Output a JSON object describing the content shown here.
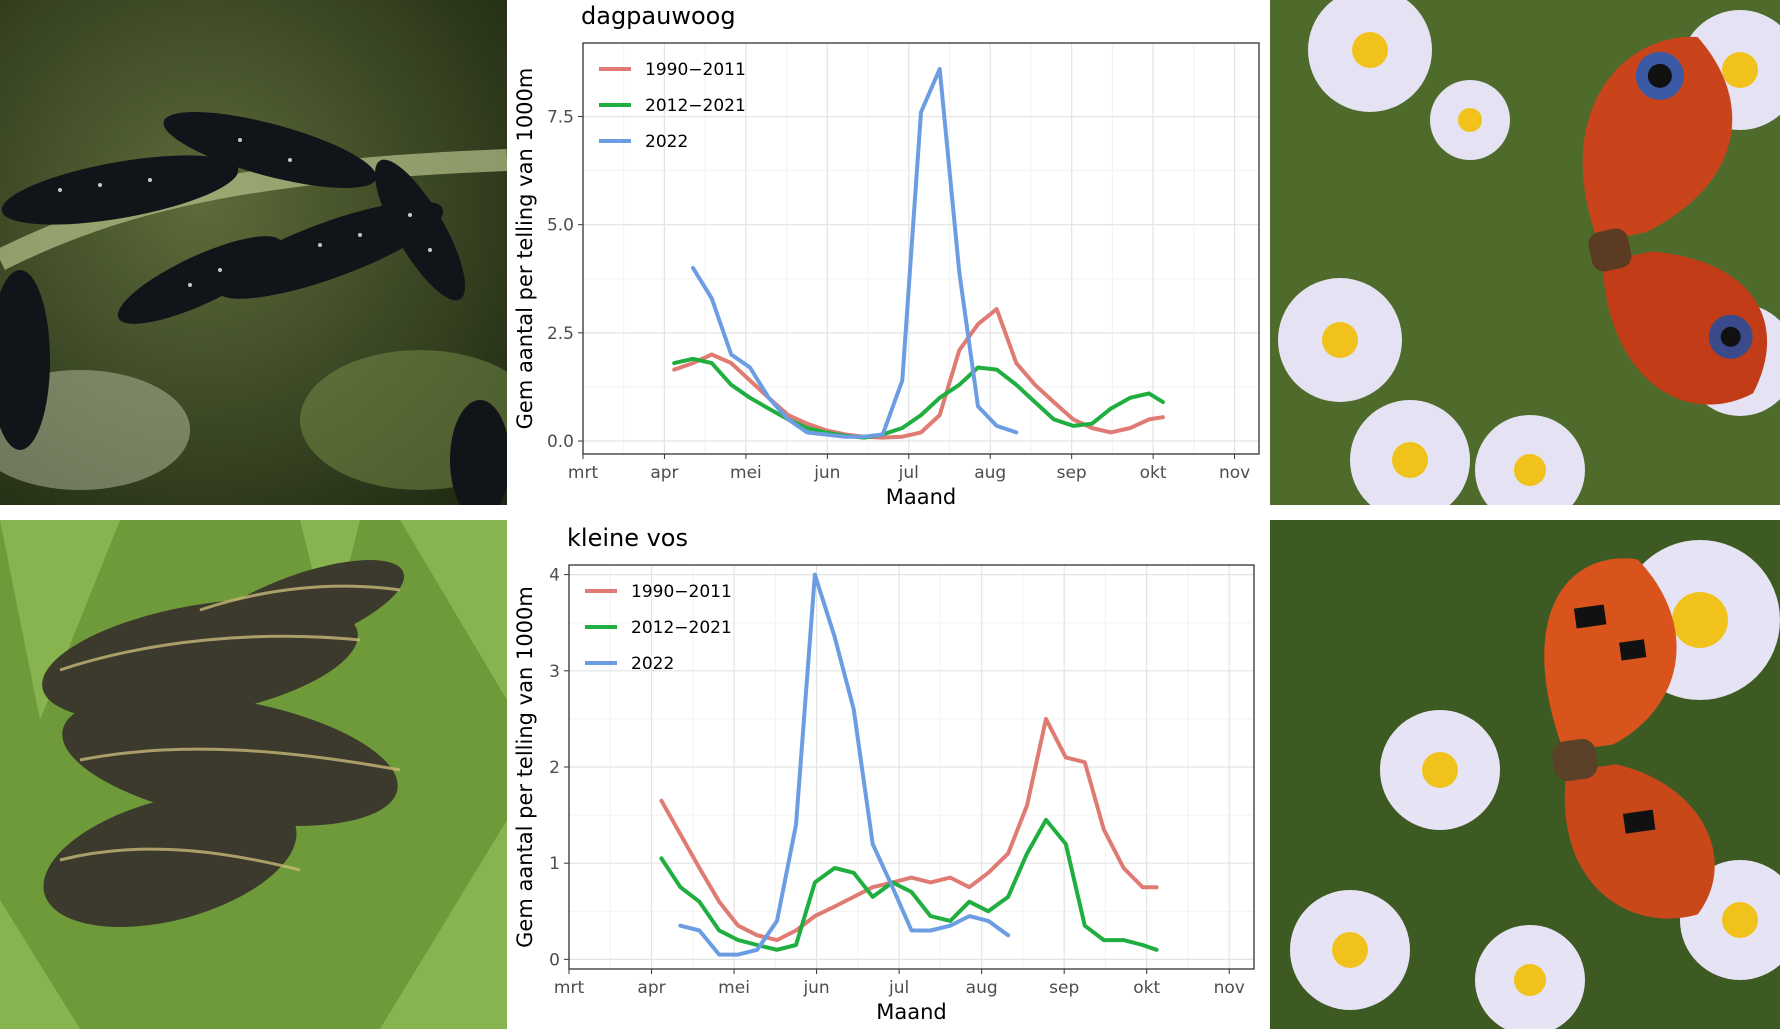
{
  "colors": {
    "series_1990_2011": "#e07b74",
    "series_2012_2021": "#1fae3f",
    "series_2022": "#6c9de2"
  },
  "photos": [
    {
      "name": "peacock-caterpillars-photo",
      "subject": "peacock caterpillars on nettle"
    },
    {
      "name": "peacock-butterfly-photo",
      "subject": "peacock butterfly on asters"
    },
    {
      "name": "small-tortoiseshell-caterpillars-photo",
      "subject": "small tortoiseshell caterpillars"
    },
    {
      "name": "small-tortoiseshell-butterfly-photo",
      "subject": "small tortoiseshell butterfly on asters"
    }
  ],
  "chart_data": [
    {
      "type": "line",
      "title": "dagpauwoog",
      "xlabel": "Maand",
      "ylabel": "Gem aantal per telling van 1000m",
      "xlim": [
        0,
        8.3
      ],
      "ylim": [
        -0.3,
        9.2
      ],
      "x_ticks": [
        0,
        1,
        2,
        3,
        4,
        5,
        6,
        7,
        8
      ],
      "x_tick_labels": [
        "mrt",
        "apr",
        "mei",
        "jun",
        "jul",
        "aug",
        "sep",
        "okt",
        "nov"
      ],
      "y_ticks": [
        0,
        2.5,
        5,
        7.5
      ],
      "y_tick_labels": [
        "0.0",
        "2.5",
        "5.0",
        "7.5"
      ],
      "legend": [
        "1990−2011",
        "2012−2021",
        "2022"
      ],
      "legend_position": "top-left",
      "series": [
        {
          "name": "1990−2011",
          "color": "#e07b74",
          "x": [
            1.12,
            1.35,
            1.58,
            1.82,
            2.05,
            2.28,
            2.52,
            2.75,
            2.98,
            3.22,
            3.45,
            3.68,
            3.92,
            4.15,
            4.38,
            4.62,
            4.85,
            5.08,
            5.32,
            5.55,
            5.78,
            6.02,
            6.25,
            6.48,
            6.72,
            6.95,
            7.12
          ],
          "y": [
            1.65,
            1.8,
            2.0,
            1.8,
            1.4,
            1.0,
            0.6,
            0.4,
            0.25,
            0.15,
            0.1,
            0.08,
            0.1,
            0.2,
            0.6,
            2.1,
            2.7,
            3.05,
            1.8,
            1.3,
            0.9,
            0.5,
            0.3,
            0.2,
            0.3,
            0.5,
            0.55
          ]
        },
        {
          "name": "2012−2021",
          "color": "#1fae3f",
          "x": [
            1.12,
            1.35,
            1.58,
            1.82,
            2.05,
            2.28,
            2.52,
            2.75,
            2.98,
            3.22,
            3.45,
            3.68,
            3.92,
            4.15,
            4.38,
            4.62,
            4.85,
            5.08,
            5.32,
            5.55,
            5.78,
            6.02,
            6.25,
            6.48,
            6.72,
            6.95,
            7.12
          ],
          "y": [
            1.8,
            1.9,
            1.8,
            1.3,
            1.0,
            0.75,
            0.5,
            0.3,
            0.2,
            0.12,
            0.08,
            0.15,
            0.3,
            0.6,
            1.0,
            1.3,
            1.7,
            1.65,
            1.3,
            0.9,
            0.5,
            0.35,
            0.4,
            0.75,
            1.0,
            1.1,
            0.9
          ]
        },
        {
          "name": "2022",
          "color": "#6c9de2",
          "x": [
            1.35,
            1.58,
            1.82,
            2.05,
            2.28,
            2.52,
            2.75,
            2.98,
            3.22,
            3.45,
            3.68,
            3.92,
            4.15,
            4.38,
            4.62,
            4.85,
            5.08,
            5.32
          ],
          "y": [
            4.0,
            3.3,
            2.0,
            1.7,
            1.0,
            0.5,
            0.2,
            0.15,
            0.1,
            0.1,
            0.15,
            1.4,
            7.6,
            8.6,
            3.9,
            0.8,
            0.35,
            0.2
          ]
        }
      ]
    },
    {
      "type": "line",
      "title": "kleine vos",
      "xlabel": "Maand",
      "ylabel": "Gem aantal per telling van 1000m",
      "xlim": [
        0,
        8.3
      ],
      "ylim": [
        -0.1,
        4.1
      ],
      "x_ticks": [
        0,
        1,
        2,
        3,
        4,
        5,
        6,
        7,
        8
      ],
      "x_tick_labels": [
        "mrt",
        "apr",
        "mei",
        "jun",
        "jul",
        "aug",
        "sep",
        "okt",
        "nov"
      ],
      "y_ticks": [
        0,
        1,
        2,
        3,
        4
      ],
      "y_tick_labels": [
        "0",
        "1",
        "2",
        "3",
        "4"
      ],
      "legend": [
        "1990−2011",
        "2012−2021",
        "2022"
      ],
      "legend_position": "top-left",
      "series": [
        {
          "name": "1990−2011",
          "color": "#e07b74",
          "x": [
            1.12,
            1.35,
            1.58,
            1.82,
            2.05,
            2.28,
            2.52,
            2.75,
            2.98,
            3.22,
            3.45,
            3.68,
            3.92,
            4.15,
            4.38,
            4.62,
            4.85,
            5.08,
            5.32,
            5.55,
            5.78,
            6.02,
            6.25,
            6.48,
            6.72,
            6.95,
            7.12
          ],
          "y": [
            1.65,
            1.3,
            0.95,
            0.6,
            0.35,
            0.25,
            0.2,
            0.3,
            0.45,
            0.55,
            0.65,
            0.75,
            0.8,
            0.85,
            0.8,
            0.85,
            0.75,
            0.9,
            1.1,
            1.6,
            2.5,
            2.1,
            2.05,
            1.35,
            0.95,
            0.75,
            0.75
          ]
        },
        {
          "name": "2012−2021",
          "color": "#1fae3f",
          "x": [
            1.12,
            1.35,
            1.58,
            1.82,
            2.05,
            2.28,
            2.52,
            2.75,
            2.98,
            3.22,
            3.45,
            3.68,
            3.92,
            4.15,
            4.38,
            4.62,
            4.85,
            5.08,
            5.32,
            5.55,
            5.78,
            6.02,
            6.25,
            6.48,
            6.72,
            6.95,
            7.12
          ],
          "y": [
            1.05,
            0.75,
            0.6,
            0.3,
            0.2,
            0.15,
            0.1,
            0.15,
            0.8,
            0.95,
            0.9,
            0.65,
            0.8,
            0.7,
            0.45,
            0.4,
            0.6,
            0.5,
            0.65,
            1.1,
            1.45,
            1.2,
            0.35,
            0.2,
            0.2,
            0.15,
            0.1
          ]
        },
        {
          "name": "2022",
          "color": "#6c9de2",
          "x": [
            1.35,
            1.58,
            1.82,
            2.05,
            2.28,
            2.52,
            2.75,
            2.98,
            3.22,
            3.45,
            3.68,
            3.92,
            4.15,
            4.38,
            4.62,
            4.85,
            5.08,
            5.32
          ],
          "y": [
            0.35,
            0.3,
            0.05,
            0.05,
            0.1,
            0.4,
            1.4,
            4.0,
            3.35,
            2.6,
            1.2,
            0.75,
            0.3,
            0.3,
            0.35,
            0.45,
            0.4,
            0.25
          ]
        }
      ]
    }
  ]
}
